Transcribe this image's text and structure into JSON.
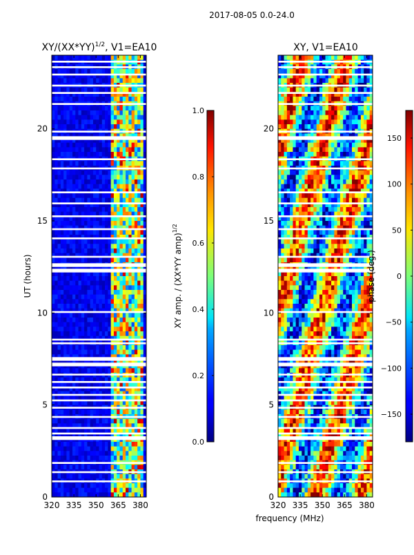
{
  "figure_title": "2017-08-05 0.0-24.0",
  "shared_xlabel": "frequency (MHz)",
  "colors": {
    "frame": "#000000",
    "gap": "#ffffff",
    "tick_text": "#000000"
  },
  "chart_data": [
    {
      "type": "heatmap",
      "title_main": "XY/(XX*YY)",
      "title_sup": "1/2",
      "title_tail": ", V1=EA10",
      "xlabel": "",
      "ylabel": "UT (hours)",
      "xlim": [
        320,
        384
      ],
      "ylim": [
        0,
        24
      ],
      "xticks": [
        320,
        335,
        350,
        365,
        380
      ],
      "yticks": [
        0,
        5,
        10,
        15,
        20
      ],
      "colormap": "jet",
      "colorbar": {
        "label_main": "XY amp. / (XX*YY amp)",
        "label_sup": "1/2",
        "range": [
          0.0,
          1.0
        ],
        "ticks": [
          "0.0",
          "0.2",
          "0.4",
          "0.6",
          "0.8",
          "1.0"
        ],
        "tick_values": [
          0.0,
          0.2,
          0.4,
          0.6,
          0.8,
          1.0
        ]
      },
      "bright_band_mhz": [
        361,
        381
      ],
      "flagged_gaps_ut": [
        [
          0.8,
          0.9
        ],
        [
          1.3,
          1.4
        ],
        [
          1.8,
          1.9
        ],
        [
          3.1,
          3.3
        ],
        [
          3.4,
          3.5
        ],
        [
          3.7,
          3.8
        ],
        [
          4.3,
          4.4
        ],
        [
          4.8,
          4.9
        ],
        [
          5.2,
          5.3
        ],
        [
          5.5,
          5.6
        ],
        [
          5.9,
          6.0
        ],
        [
          6.2,
          6.3
        ],
        [
          6.6,
          6.7
        ],
        [
          7.1,
          7.3
        ],
        [
          7.4,
          7.6
        ],
        [
          8.3,
          8.4
        ],
        [
          8.5,
          8.6
        ],
        [
          10.0,
          10.1
        ],
        [
          12.2,
          12.4
        ],
        [
          12.5,
          12.7
        ],
        [
          13.0,
          13.1
        ],
        [
          14.0,
          14.1
        ],
        [
          14.5,
          14.6
        ],
        [
          15.2,
          15.3
        ],
        [
          15.9,
          16.0
        ],
        [
          16.5,
          16.6
        ],
        [
          17.8,
          17.9
        ],
        [
          18.3,
          18.4
        ],
        [
          19.4,
          19.6
        ],
        [
          19.8,
          19.9
        ],
        [
          21.3,
          21.4
        ],
        [
          21.9,
          22.0
        ],
        [
          22.3,
          22.4
        ],
        [
          22.9,
          23.0
        ],
        [
          23.3,
          23.4
        ],
        [
          23.6,
          23.7
        ]
      ]
    },
    {
      "type": "heatmap",
      "title_main": "XY, V1=EA10",
      "xlabel": "frequency (MHz)",
      "ylabel": "",
      "xlim": [
        320,
        384
      ],
      "ylim": [
        0,
        24
      ],
      "xticks": [
        320,
        335,
        350,
        365,
        380
      ],
      "yticks": [
        0,
        5,
        10,
        15,
        20
      ],
      "colormap": "jet",
      "colorbar": {
        "label_main": "phase (deg.)",
        "range": [
          -180,
          180
        ],
        "ticks": [
          "−150",
          "−100",
          "−50",
          "0",
          "50",
          "100",
          "150"
        ],
        "tick_values": [
          -150,
          -100,
          -50,
          0,
          50,
          100,
          150
        ]
      },
      "flagged_gaps_ut": [
        [
          0.8,
          0.9
        ],
        [
          1.3,
          1.4
        ],
        [
          1.8,
          1.9
        ],
        [
          3.1,
          3.3
        ],
        [
          3.4,
          3.5
        ],
        [
          3.7,
          3.8
        ],
        [
          4.3,
          4.4
        ],
        [
          4.8,
          4.9
        ],
        [
          5.2,
          5.3
        ],
        [
          5.5,
          5.6
        ],
        [
          5.9,
          6.0
        ],
        [
          6.2,
          6.3
        ],
        [
          6.6,
          6.7
        ],
        [
          7.1,
          7.3
        ],
        [
          7.4,
          7.6
        ],
        [
          8.3,
          8.4
        ],
        [
          8.5,
          8.6
        ],
        [
          10.0,
          10.1
        ],
        [
          12.2,
          12.4
        ],
        [
          12.5,
          12.7
        ],
        [
          13.0,
          13.1
        ],
        [
          14.0,
          14.1
        ],
        [
          14.5,
          14.6
        ],
        [
          15.2,
          15.3
        ],
        [
          15.9,
          16.0
        ],
        [
          16.5,
          16.6
        ],
        [
          17.8,
          17.9
        ],
        [
          18.3,
          18.4
        ],
        [
          19.4,
          19.6
        ],
        [
          19.8,
          19.9
        ],
        [
          21.3,
          21.4
        ],
        [
          21.9,
          22.0
        ],
        [
          22.3,
          22.4
        ],
        [
          22.9,
          23.0
        ],
        [
          23.3,
          23.4
        ],
        [
          23.6,
          23.7
        ]
      ]
    }
  ]
}
